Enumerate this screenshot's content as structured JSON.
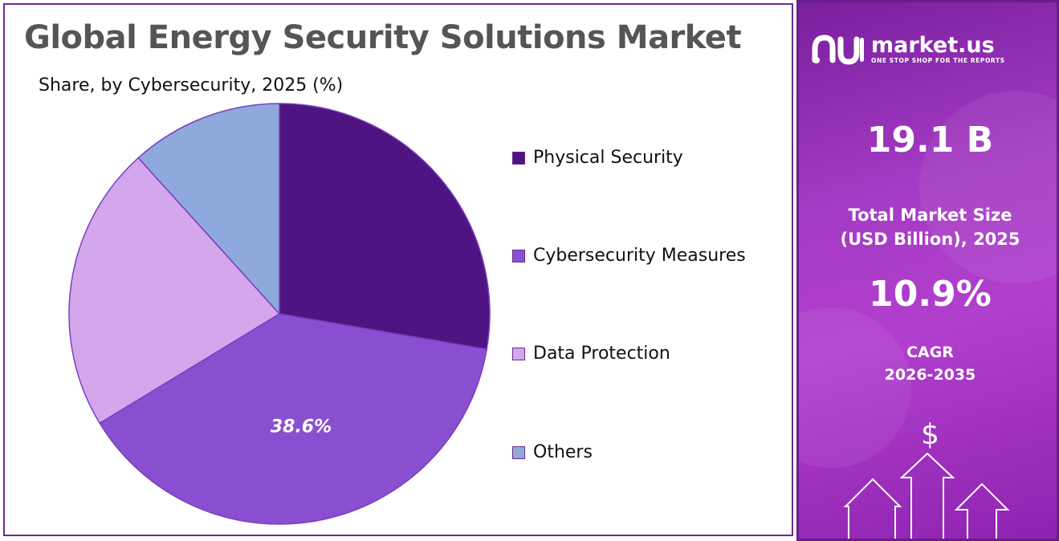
{
  "title": "Global Energy Security Solutions Market",
  "subtitle": "Share, by Cybersecurity, 2025 (%)",
  "chart_data": {
    "type": "pie",
    "title": "Global Energy Security Solutions Market",
    "subtitle": "Share, by Cybersecurity, 2025 (%)",
    "categories": [
      "Physical Security",
      "Cybersecurity Measures",
      "Data Protection",
      "Others"
    ],
    "values": [
      27.7,
      38.6,
      22.0,
      11.7
    ],
    "colors": [
      "#4e1582",
      "#8a4fd0",
      "#d4a6ec",
      "#8fa9dc"
    ],
    "start_angle_deg": 0,
    "direction": "clockwise",
    "data_labels": [
      {
        "category": "Cybersecurity Measures",
        "text": "38.6%"
      }
    ],
    "legend_position": "right"
  },
  "legend": {
    "items": [
      {
        "label": "Physical Security",
        "color": "#4e1582"
      },
      {
        "label": "Cybersecurity Measures",
        "color": "#8a4fd0"
      },
      {
        "label": "Data Protection",
        "color": "#d4a6ec"
      },
      {
        "label": "Others",
        "color": "#8fa9dc"
      }
    ]
  },
  "brand": {
    "name": "market.us",
    "tagline": "ONE STOP SHOP FOR THE REPORTS",
    "logo_icon": "market-us-logo-icon"
  },
  "stats": {
    "market_size": "19.1 B",
    "market_size_label_line1": "Total Market Size",
    "market_size_label_line2": "(USD Billion), 2025",
    "cagr": "10.9%",
    "cagr_label_line1": "CAGR",
    "cagr_label_line2": "2026-2035",
    "dollar_symbol": "$"
  }
}
